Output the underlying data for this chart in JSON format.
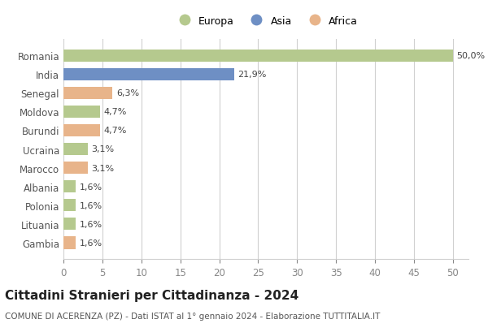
{
  "countries": [
    "Romania",
    "India",
    "Senegal",
    "Moldova",
    "Burundi",
    "Ucraina",
    "Marocco",
    "Albania",
    "Polonia",
    "Lituania",
    "Gambia"
  ],
  "values": [
    50.0,
    21.9,
    6.3,
    4.7,
    4.7,
    3.1,
    3.1,
    1.6,
    1.6,
    1.6,
    1.6
  ],
  "labels": [
    "50,0%",
    "21,9%",
    "6,3%",
    "4,7%",
    "4,7%",
    "3,1%",
    "3,1%",
    "1,6%",
    "1,6%",
    "1,6%",
    "1,6%"
  ],
  "colors": [
    "#b5c98e",
    "#6e8fc4",
    "#e8b48a",
    "#b5c98e",
    "#e8b48a",
    "#b5c98e",
    "#e8b48a",
    "#b5c98e",
    "#b5c98e",
    "#b5c98e",
    "#e8b48a"
  ],
  "legend_labels": [
    "Europa",
    "Asia",
    "Africa"
  ],
  "legend_colors": [
    "#b5c98e",
    "#6e8fc4",
    "#e8b48a"
  ],
  "title": "Cittadini Stranieri per Cittadinanza - 2024",
  "subtitle": "COMUNE DI ACERENZA (PZ) - Dati ISTAT al 1° gennaio 2024 - Elaborazione TUTTITALIA.IT",
  "xlim": [
    0,
    52
  ],
  "xticks": [
    0,
    5,
    10,
    15,
    20,
    25,
    30,
    35,
    40,
    45,
    50
  ],
  "bg_color": "#ffffff",
  "grid_color": "#d0d0d0",
  "bar_height": 0.65,
  "label_fontsize": 8,
  "title_fontsize": 11,
  "subtitle_fontsize": 7.5,
  "ytick_fontsize": 8.5,
  "xtick_fontsize": 8.5
}
